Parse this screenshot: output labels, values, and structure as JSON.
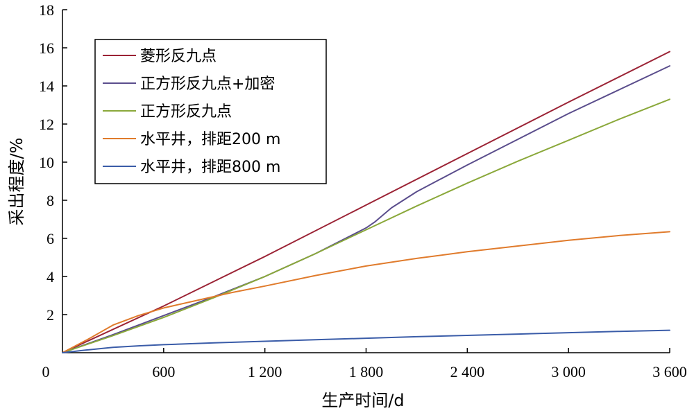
{
  "chart_data": {
    "type": "line",
    "xlabel": "生产时间/d",
    "ylabel": "采出程度/%",
    "xlim": [
      0,
      3600
    ],
    "ylim": [
      0,
      18
    ],
    "x_ticks": [
      0,
      600,
      1200,
      1800,
      2400,
      3000,
      3600
    ],
    "x_tick_labels": [
      "0",
      "600",
      "1 200",
      "1 800",
      "2 400",
      "3 000",
      "3 600"
    ],
    "y_ticks": [
      2,
      4,
      6,
      8,
      10,
      12,
      14,
      16,
      18
    ],
    "y_tick_labels": [
      "2",
      "4",
      "6",
      "8",
      "10",
      "12",
      "14",
      "16",
      "18"
    ],
    "grid": false,
    "legend_position": "top-left",
    "series": [
      {
        "name": "菱形反九点",
        "color": "#9b2335",
        "x": [
          0,
          600,
          1200,
          1800,
          2400,
          3000,
          3600
        ],
        "y": [
          0,
          2.45,
          5.05,
          7.75,
          10.45,
          13.15,
          15.8
        ]
      },
      {
        "name": "正方形反九点+加密",
        "color": "#5a4d8c",
        "x": [
          0,
          300,
          600,
          900,
          1200,
          1500,
          1800,
          1850,
          1950,
          2100,
          2400,
          2700,
          3000,
          3300,
          3600
        ],
        "y": [
          0,
          0.95,
          1.95,
          2.95,
          4.0,
          5.2,
          6.55,
          6.85,
          7.6,
          8.45,
          9.85,
          11.2,
          12.55,
          13.8,
          15.05
        ]
      },
      {
        "name": "正方形反九点",
        "color": "#8aa83a",
        "x": [
          0,
          300,
          600,
          900,
          1200,
          1500,
          1800,
          2100,
          2400,
          2700,
          3000,
          3300,
          3600
        ],
        "y": [
          0,
          0.9,
          1.85,
          2.9,
          4.0,
          5.2,
          6.45,
          7.7,
          8.9,
          10.05,
          11.15,
          12.25,
          13.3
        ]
      },
      {
        "name": "水平井，排距200 m",
        "color": "#e07b2c",
        "x": [
          0,
          150,
          300,
          450,
          600,
          800,
          1000,
          1200,
          1500,
          1800,
          2100,
          2400,
          2700,
          3000,
          3300,
          3600
        ],
        "y": [
          0,
          0.7,
          1.45,
          1.95,
          2.35,
          2.75,
          3.15,
          3.5,
          4.05,
          4.55,
          4.95,
          5.3,
          5.6,
          5.9,
          6.15,
          6.35
        ]
      },
      {
        "name": "水平井，排距800 m",
        "color": "#3a5ca8",
        "x": [
          0,
          150,
          300,
          450,
          600,
          900,
          1200,
          1500,
          1800,
          2100,
          2400,
          2700,
          3000,
          3300,
          3600
        ],
        "y": [
          0,
          0.15,
          0.28,
          0.36,
          0.42,
          0.52,
          0.6,
          0.68,
          0.76,
          0.84,
          0.91,
          0.98,
          1.05,
          1.12,
          1.18
        ]
      }
    ]
  }
}
